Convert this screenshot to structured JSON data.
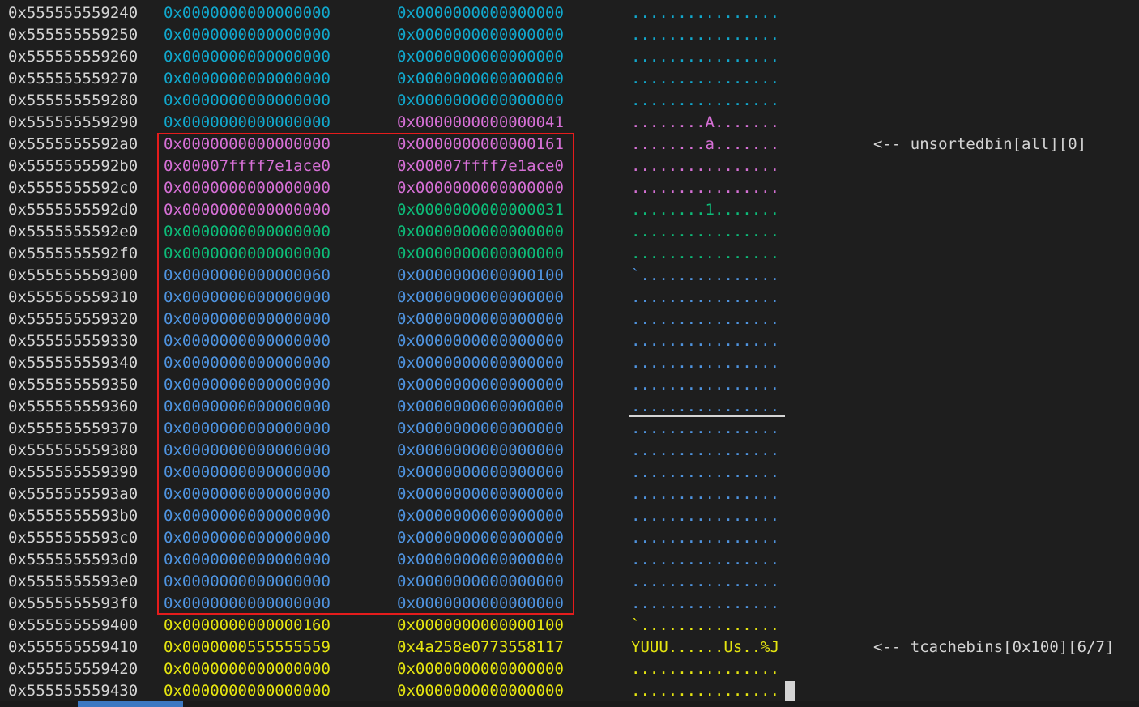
{
  "colors": {
    "cyan": "#11a8cd",
    "magenta": "#d670d6",
    "green": "#0dbc79",
    "blue": "#4f94e0",
    "yellow": "#e5e510",
    "white": "#d4d4d4",
    "highlight_box": "#e51c1c"
  },
  "rows": [
    {
      "addr": "0x555555559240",
      "q1": "0x0000000000000000",
      "q2": "0x0000000000000000",
      "ascii": "................",
      "c1": "cyan",
      "c2": "cyan",
      "c3": "cyan",
      "note": ""
    },
    {
      "addr": "0x555555559250",
      "q1": "0x0000000000000000",
      "q2": "0x0000000000000000",
      "ascii": "................",
      "c1": "cyan",
      "c2": "cyan",
      "c3": "cyan",
      "note": ""
    },
    {
      "addr": "0x555555559260",
      "q1": "0x0000000000000000",
      "q2": "0x0000000000000000",
      "ascii": "................",
      "c1": "cyan",
      "c2": "cyan",
      "c3": "cyan",
      "note": ""
    },
    {
      "addr": "0x555555559270",
      "q1": "0x0000000000000000",
      "q2": "0x0000000000000000",
      "ascii": "................",
      "c1": "cyan",
      "c2": "cyan",
      "c3": "cyan",
      "note": ""
    },
    {
      "addr": "0x555555559280",
      "q1": "0x0000000000000000",
      "q2": "0x0000000000000000",
      "ascii": "................",
      "c1": "cyan",
      "c2": "cyan",
      "c3": "cyan",
      "note": ""
    },
    {
      "addr": "0x555555559290",
      "q1": "0x0000000000000000",
      "q2": "0x0000000000000041",
      "ascii": "........A.......",
      "c1": "cyan",
      "c2": "magenta",
      "c3": "magenta",
      "note": ""
    },
    {
      "addr": "0x5555555592a0",
      "q1": "0x0000000000000000",
      "q2": "0x0000000000000161",
      "ascii": "........a.......",
      "c1": "magenta",
      "c2": "magenta",
      "c3": "magenta",
      "note": "<-- unsortedbin[all][0]"
    },
    {
      "addr": "0x5555555592b0",
      "q1": "0x00007ffff7e1ace0",
      "q2": "0x00007ffff7e1ace0",
      "ascii": "................",
      "c1": "magenta",
      "c2": "magenta",
      "c3": "magenta",
      "note": ""
    },
    {
      "addr": "0x5555555592c0",
      "q1": "0x0000000000000000",
      "q2": "0x0000000000000000",
      "ascii": "................",
      "c1": "magenta",
      "c2": "magenta",
      "c3": "magenta",
      "note": ""
    },
    {
      "addr": "0x5555555592d0",
      "q1": "0x0000000000000000",
      "q2": "0x0000000000000031",
      "ascii": "........1.......",
      "c1": "magenta",
      "c2": "green",
      "c3": "green",
      "note": ""
    },
    {
      "addr": "0x5555555592e0",
      "q1": "0x0000000000000000",
      "q2": "0x0000000000000000",
      "ascii": "................",
      "c1": "green",
      "c2": "green",
      "c3": "green",
      "note": ""
    },
    {
      "addr": "0x5555555592f0",
      "q1": "0x0000000000000000",
      "q2": "0x0000000000000000",
      "ascii": "................",
      "c1": "green",
      "c2": "green",
      "c3": "green",
      "note": ""
    },
    {
      "addr": "0x555555559300",
      "q1": "0x0000000000000060",
      "q2": "0x0000000000000100",
      "ascii": "`...............",
      "c1": "blue",
      "c2": "blue",
      "c3": "blue",
      "note": ""
    },
    {
      "addr": "0x555555559310",
      "q1": "0x0000000000000000",
      "q2": "0x0000000000000000",
      "ascii": "................",
      "c1": "blue",
      "c2": "blue",
      "c3": "blue",
      "note": ""
    },
    {
      "addr": "0x555555559320",
      "q1": "0x0000000000000000",
      "q2": "0x0000000000000000",
      "ascii": "................",
      "c1": "blue",
      "c2": "blue",
      "c3": "blue",
      "note": ""
    },
    {
      "addr": "0x555555559330",
      "q1": "0x0000000000000000",
      "q2": "0x0000000000000000",
      "ascii": "................",
      "c1": "blue",
      "c2": "blue",
      "c3": "blue",
      "note": ""
    },
    {
      "addr": "0x555555559340",
      "q1": "0x0000000000000000",
      "q2": "0x0000000000000000",
      "ascii": "................",
      "c1": "blue",
      "c2": "blue",
      "c3": "blue",
      "note": ""
    },
    {
      "addr": "0x555555559350",
      "q1": "0x0000000000000000",
      "q2": "0x0000000000000000",
      "ascii": "................",
      "c1": "blue",
      "c2": "blue",
      "c3": "blue",
      "note": ""
    },
    {
      "addr": "0x555555559360",
      "q1": "0x0000000000000000",
      "q2": "0x0000000000000000",
      "ascii": "................",
      "c1": "blue",
      "c2": "blue",
      "c3": "blue",
      "note": ""
    },
    {
      "addr": "0x555555559370",
      "q1": "0x0000000000000000",
      "q2": "0x0000000000000000",
      "ascii": "................",
      "c1": "blue",
      "c2": "blue",
      "c3": "blue",
      "note": ""
    },
    {
      "addr": "0x555555559380",
      "q1": "0x0000000000000000",
      "q2": "0x0000000000000000",
      "ascii": "................",
      "c1": "blue",
      "c2": "blue",
      "c3": "blue",
      "note": ""
    },
    {
      "addr": "0x555555559390",
      "q1": "0x0000000000000000",
      "q2": "0x0000000000000000",
      "ascii": "................",
      "c1": "blue",
      "c2": "blue",
      "c3": "blue",
      "note": ""
    },
    {
      "addr": "0x5555555593a0",
      "q1": "0x0000000000000000",
      "q2": "0x0000000000000000",
      "ascii": "................",
      "c1": "blue",
      "c2": "blue",
      "c3": "blue",
      "note": ""
    },
    {
      "addr": "0x5555555593b0",
      "q1": "0x0000000000000000",
      "q2": "0x0000000000000000",
      "ascii": "................",
      "c1": "blue",
      "c2": "blue",
      "c3": "blue",
      "note": ""
    },
    {
      "addr": "0x5555555593c0",
      "q1": "0x0000000000000000",
      "q2": "0x0000000000000000",
      "ascii": "................",
      "c1": "blue",
      "c2": "blue",
      "c3": "blue",
      "note": ""
    },
    {
      "addr": "0x5555555593d0",
      "q1": "0x0000000000000000",
      "q2": "0x0000000000000000",
      "ascii": "................",
      "c1": "blue",
      "c2": "blue",
      "c3": "blue",
      "note": ""
    },
    {
      "addr": "0x5555555593e0",
      "q1": "0x0000000000000000",
      "q2": "0x0000000000000000",
      "ascii": "................",
      "c1": "blue",
      "c2": "blue",
      "c3": "blue",
      "note": ""
    },
    {
      "addr": "0x5555555593f0",
      "q1": "0x0000000000000000",
      "q2": "0x0000000000000000",
      "ascii": "................",
      "c1": "blue",
      "c2": "blue",
      "c3": "blue",
      "note": ""
    },
    {
      "addr": "0x555555559400",
      "q1": "0x0000000000000160",
      "q2": "0x0000000000000100",
      "ascii": "`...............",
      "c1": "yellow",
      "c2": "yellow",
      "c3": "yellow",
      "note": ""
    },
    {
      "addr": "0x555555559410",
      "q1": "0x0000000555555559",
      "q2": "0x4a258e0773558117",
      "ascii": "YUUU......Us..%J",
      "c1": "yellow",
      "c2": "yellow",
      "c3": "yellow",
      "note": "<-- tcachebins[0x100][6/7]"
    },
    {
      "addr": "0x555555559420",
      "q1": "0x0000000000000000",
      "q2": "0x0000000000000000",
      "ascii": "................",
      "c1": "yellow",
      "c2": "yellow",
      "c3": "yellow",
      "note": ""
    },
    {
      "addr": "0x555555559430",
      "q1": "0x0000000000000000",
      "q2": "0x0000000000000000",
      "ascii": "................",
      "c1": "yellow",
      "c2": "yellow",
      "c3": "yellow",
      "note": ""
    }
  ]
}
